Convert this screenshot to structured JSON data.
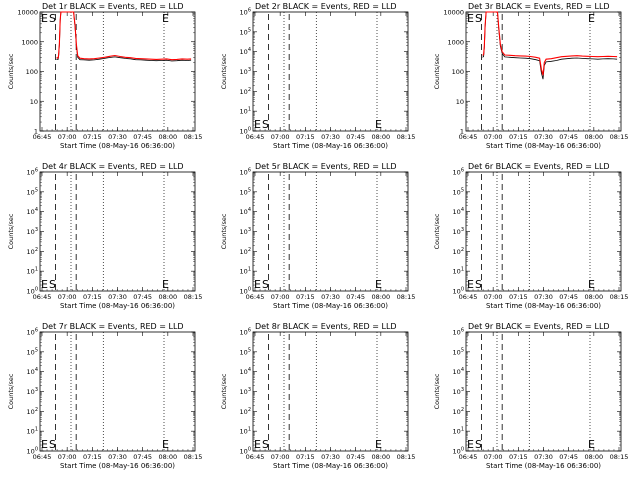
{
  "chart_data": [
    {
      "type": "line",
      "title": "Det 1r BLACK = Events, RED = LLD",
      "ylabel": "Counts/sec",
      "xlabel": "Start Time (08-May-16 06:36:00)",
      "yscale": "log",
      "ylim": [
        1,
        10000
      ],
      "ytick_labels": [
        "1",
        "10",
        "100",
        "1000",
        "10000"
      ],
      "xticks": [
        "06:45",
        "07:00",
        "07:15",
        "07:30",
        "07:45",
        "08:00",
        "08:15"
      ],
      "marker_labels": [
        "S",
        "E"
      ],
      "series": [
        {
          "color": "#000000",
          "points": [
            [
              6.4,
              250
            ],
            [
              6.7,
              260
            ],
            [
              7.0,
              255
            ],
            [
              7.2,
              320
            ],
            [
              7.5,
              800
            ],
            [
              7.8,
              5000
            ],
            [
              8.1,
              12000
            ],
            [
              8.6,
              15000
            ],
            [
              12.0,
              15000
            ],
            [
              13.0,
              12000
            ],
            [
              13.6,
              3000
            ],
            [
              14.1,
              700
            ],
            [
              14.6,
              300
            ],
            [
              15.5,
              250
            ],
            [
              17,
              245
            ],
            [
              19,
              240
            ],
            [
              21,
              245
            ],
            [
              23,
              260
            ],
            [
              25,
              275
            ],
            [
              27,
              295
            ],
            [
              29,
              310
            ],
            [
              31,
              290
            ],
            [
              33,
              275
            ],
            [
              35,
              265
            ],
            [
              37,
              250
            ],
            [
              39,
              245
            ],
            [
              41,
              240
            ],
            [
              43,
              235
            ],
            [
              45,
              230
            ],
            [
              47,
              235
            ],
            [
              49,
              240
            ],
            [
              51,
              225
            ],
            [
              53,
              230
            ],
            [
              55,
              240
            ],
            [
              57,
              235
            ],
            [
              58.5,
              240
            ]
          ]
        },
        {
          "color": "#ff0000",
          "points": [
            [
              6.4,
              280
            ],
            [
              6.7,
              290
            ],
            [
              7.0,
              285
            ],
            [
              7.2,
              360
            ],
            [
              7.5,
              900
            ],
            [
              7.8,
              5500
            ],
            [
              8.1,
              13000
            ],
            [
              8.6,
              15000
            ],
            [
              12.0,
              15000
            ],
            [
              13.0,
              13000
            ],
            [
              13.6,
              3400
            ],
            [
              14.1,
              800
            ],
            [
              14.6,
              340
            ],
            [
              15.5,
              280
            ],
            [
              17,
              270
            ],
            [
              19,
              265
            ],
            [
              21,
              270
            ],
            [
              23,
              285
            ],
            [
              25,
              300
            ],
            [
              27,
              325
            ],
            [
              29,
              345
            ],
            [
              31,
              320
            ],
            [
              33,
              300
            ],
            [
              35,
              290
            ],
            [
              37,
              275
            ],
            [
              39,
              270
            ],
            [
              41,
              265
            ],
            [
              43,
              260
            ],
            [
              45,
              255
            ],
            [
              47,
              260
            ],
            [
              49,
              265
            ],
            [
              51,
              250
            ],
            [
              53,
              255
            ],
            [
              55,
              265
            ],
            [
              57,
              260
            ],
            [
              58.5,
              265
            ]
          ]
        }
      ]
    },
    {
      "type": "line",
      "title": "Det 2r BLACK = Events, RED = LLD",
      "ylabel": "Counts/sec",
      "xlabel": "Start Time (08-May-16 06:36:00)",
      "yscale": "log",
      "ylim": [
        1,
        1000000
      ],
      "ytick_labels": [
        "10^0",
        "10^1",
        "10^2",
        "10^3",
        "10^4",
        "10^5",
        "10^6"
      ],
      "xticks": [
        "06:45",
        "07:00",
        "07:15",
        "07:30",
        "07:45",
        "08:00",
        "08:15"
      ],
      "marker_labels": [
        "S",
        "E"
      ],
      "series": []
    },
    {
      "type": "line",
      "title": "Det 3r BLACK = Events, RED = LLD",
      "ylabel": "Counts/sec",
      "xlabel": "Start Time (08-May-16 06:36:00)",
      "yscale": "log",
      "ylim": [
        1,
        10000
      ],
      "ytick_labels": [
        "1",
        "10",
        "100",
        "1000",
        "10000"
      ],
      "xticks": [
        "06:45",
        "07:00",
        "07:15",
        "07:30",
        "07:45",
        "08:00",
        "08:15"
      ],
      "marker_labels": [
        "S",
        "E"
      ],
      "series": [
        {
          "color": "#000000",
          "points": [
            [
              6.4,
              300
            ],
            [
              6.8,
              320
            ],
            [
              7.1,
              600
            ],
            [
              7.4,
              3000
            ],
            [
              7.8,
              12000
            ],
            [
              8.3,
              15000
            ],
            [
              11.5,
              15000
            ],
            [
              12.2,
              10000
            ],
            [
              12.7,
              2500
            ],
            [
              13.3,
              700
            ],
            [
              14.0,
              400
            ],
            [
              15,
              310
            ],
            [
              17,
              300
            ],
            [
              19,
              290
            ],
            [
              21,
              285
            ],
            [
              23,
              280
            ],
            [
              25,
              270
            ],
            [
              27,
              250
            ],
            [
              28.5,
              230
            ],
            [
              29.2,
              90
            ],
            [
              29.8,
              55
            ],
            [
              30.3,
              160
            ],
            [
              31,
              210
            ],
            [
              33,
              220
            ],
            [
              35,
              235
            ],
            [
              37,
              260
            ],
            [
              39,
              270
            ],
            [
              41,
              280
            ],
            [
              43,
              285
            ],
            [
              45,
              275
            ],
            [
              47,
              270
            ],
            [
              49,
              265
            ],
            [
              51,
              260
            ],
            [
              53,
              265
            ],
            [
              55,
              270
            ],
            [
              57,
              265
            ],
            [
              58.5,
              260
            ]
          ]
        },
        {
          "color": "#ff0000",
          "points": [
            [
              6.4,
              350
            ],
            [
              6.8,
              370
            ],
            [
              7.1,
              700
            ],
            [
              7.4,
              3500
            ],
            [
              7.8,
              13000
            ],
            [
              8.3,
              15000
            ],
            [
              11.5,
              15000
            ],
            [
              12.2,
              11000
            ],
            [
              12.7,
              2900
            ],
            [
              13.3,
              800
            ],
            [
              14.0,
              460
            ],
            [
              15,
              360
            ],
            [
              17,
              350
            ],
            [
              19,
              340
            ],
            [
              21,
              335
            ],
            [
              23,
              330
            ],
            [
              25,
              320
            ],
            [
              27,
              300
            ],
            [
              28.5,
              280
            ],
            [
              29.2,
              120
            ],
            [
              29.8,
              75
            ],
            [
              30.3,
              200
            ],
            [
              31,
              260
            ],
            [
              33,
              270
            ],
            [
              35,
              290
            ],
            [
              37,
              315
            ],
            [
              39,
              325
            ],
            [
              41,
              335
            ],
            [
              43,
              340
            ],
            [
              45,
              330
            ],
            [
              47,
              325
            ],
            [
              49,
              320
            ],
            [
              51,
              315
            ],
            [
              53,
              320
            ],
            [
              55,
              325
            ],
            [
              57,
              320
            ],
            [
              58.5,
              315
            ]
          ]
        }
      ]
    },
    {
      "type": "line",
      "title": "Det 4r BLACK = Events, RED = LLD",
      "ylabel": "Counts/sec",
      "xlabel": "Start Time (08-May-16 06:36:00)",
      "yscale": "log",
      "ylim": [
        1,
        1000000
      ],
      "ytick_labels": [
        "10^0",
        "10^1",
        "10^2",
        "10^3",
        "10^4",
        "10^5",
        "10^6"
      ],
      "xticks": [
        "06:45",
        "07:00",
        "07:15",
        "07:30",
        "07:45",
        "08:00",
        "08:15"
      ],
      "marker_labels": [
        "S",
        "E"
      ],
      "series": []
    },
    {
      "type": "line",
      "title": "Det 5r BLACK = Events, RED = LLD",
      "ylabel": "Counts/sec",
      "xlabel": "Start Time (08-May-16 06:36:00)",
      "yscale": "log",
      "ylim": [
        1,
        1000000
      ],
      "ytick_labels": [
        "10^0",
        "10^1",
        "10^2",
        "10^3",
        "10^4",
        "10^5",
        "10^6"
      ],
      "xticks": [
        "06:45",
        "07:00",
        "07:15",
        "07:30",
        "07:45",
        "08:00",
        "08:15"
      ],
      "marker_labels": [
        "S",
        "E"
      ],
      "series": []
    },
    {
      "type": "line",
      "title": "Det 6r BLACK = Events, RED = LLD",
      "ylabel": "Counts/sec",
      "xlabel": "Start Time (08-May-16 06:36:00)",
      "yscale": "log",
      "ylim": [
        1,
        1000000
      ],
      "ytick_labels": [
        "10^0",
        "10^1",
        "10^2",
        "10^3",
        "10^4",
        "10^5",
        "10^6"
      ],
      "xticks": [
        "06:45",
        "07:00",
        "07:15",
        "07:30",
        "07:45",
        "08:00",
        "08:15"
      ],
      "marker_labels": [
        "S",
        "E"
      ],
      "series": []
    },
    {
      "type": "line",
      "title": "Det 7r BLACK = Events, RED = LLD",
      "ylabel": "Counts/sec",
      "xlabel": "Start Time (08-May-16 06:36:00)",
      "yscale": "log",
      "ylim": [
        1,
        1000000
      ],
      "ytick_labels": [
        "10^0",
        "10^1",
        "10^2",
        "10^3",
        "10^4",
        "10^5",
        "10^6"
      ],
      "xticks": [
        "06:45",
        "07:00",
        "07:15",
        "07:30",
        "07:45",
        "08:00",
        "08:15"
      ],
      "marker_labels": [
        "S",
        "E"
      ],
      "series": []
    },
    {
      "type": "line",
      "title": "Det 8r BLACK = Events, RED = LLD",
      "ylabel": "Counts/sec",
      "xlabel": "Start Time (08-May-16 06:36:00)",
      "yscale": "log",
      "ylim": [
        1,
        1000000
      ],
      "ytick_labels": [
        "10^0",
        "10^1",
        "10^2",
        "10^3",
        "10^4",
        "10^5",
        "10^6"
      ],
      "xticks": [
        "06:45",
        "07:00",
        "07:15",
        "07:30",
        "07:45",
        "08:00",
        "08:15"
      ],
      "marker_labels": [
        "S",
        "E"
      ],
      "series": []
    },
    {
      "type": "line",
      "title": "Det 9r BLACK = Events, RED = LLD",
      "ylabel": "Counts/sec",
      "xlabel": "Start Time (08-May-16 06:36:00)",
      "yscale": "log",
      "ylim": [
        1,
        1000000
      ],
      "ytick_labels": [
        "10^0",
        "10^1",
        "10^2",
        "10^3",
        "10^4",
        "10^5",
        "10^6"
      ],
      "xticks": [
        "06:45",
        "07:00",
        "07:15",
        "07:30",
        "07:45",
        "08:00",
        "08:15"
      ],
      "marker_labels": [
        "S",
        "E"
      ],
      "series": []
    }
  ]
}
